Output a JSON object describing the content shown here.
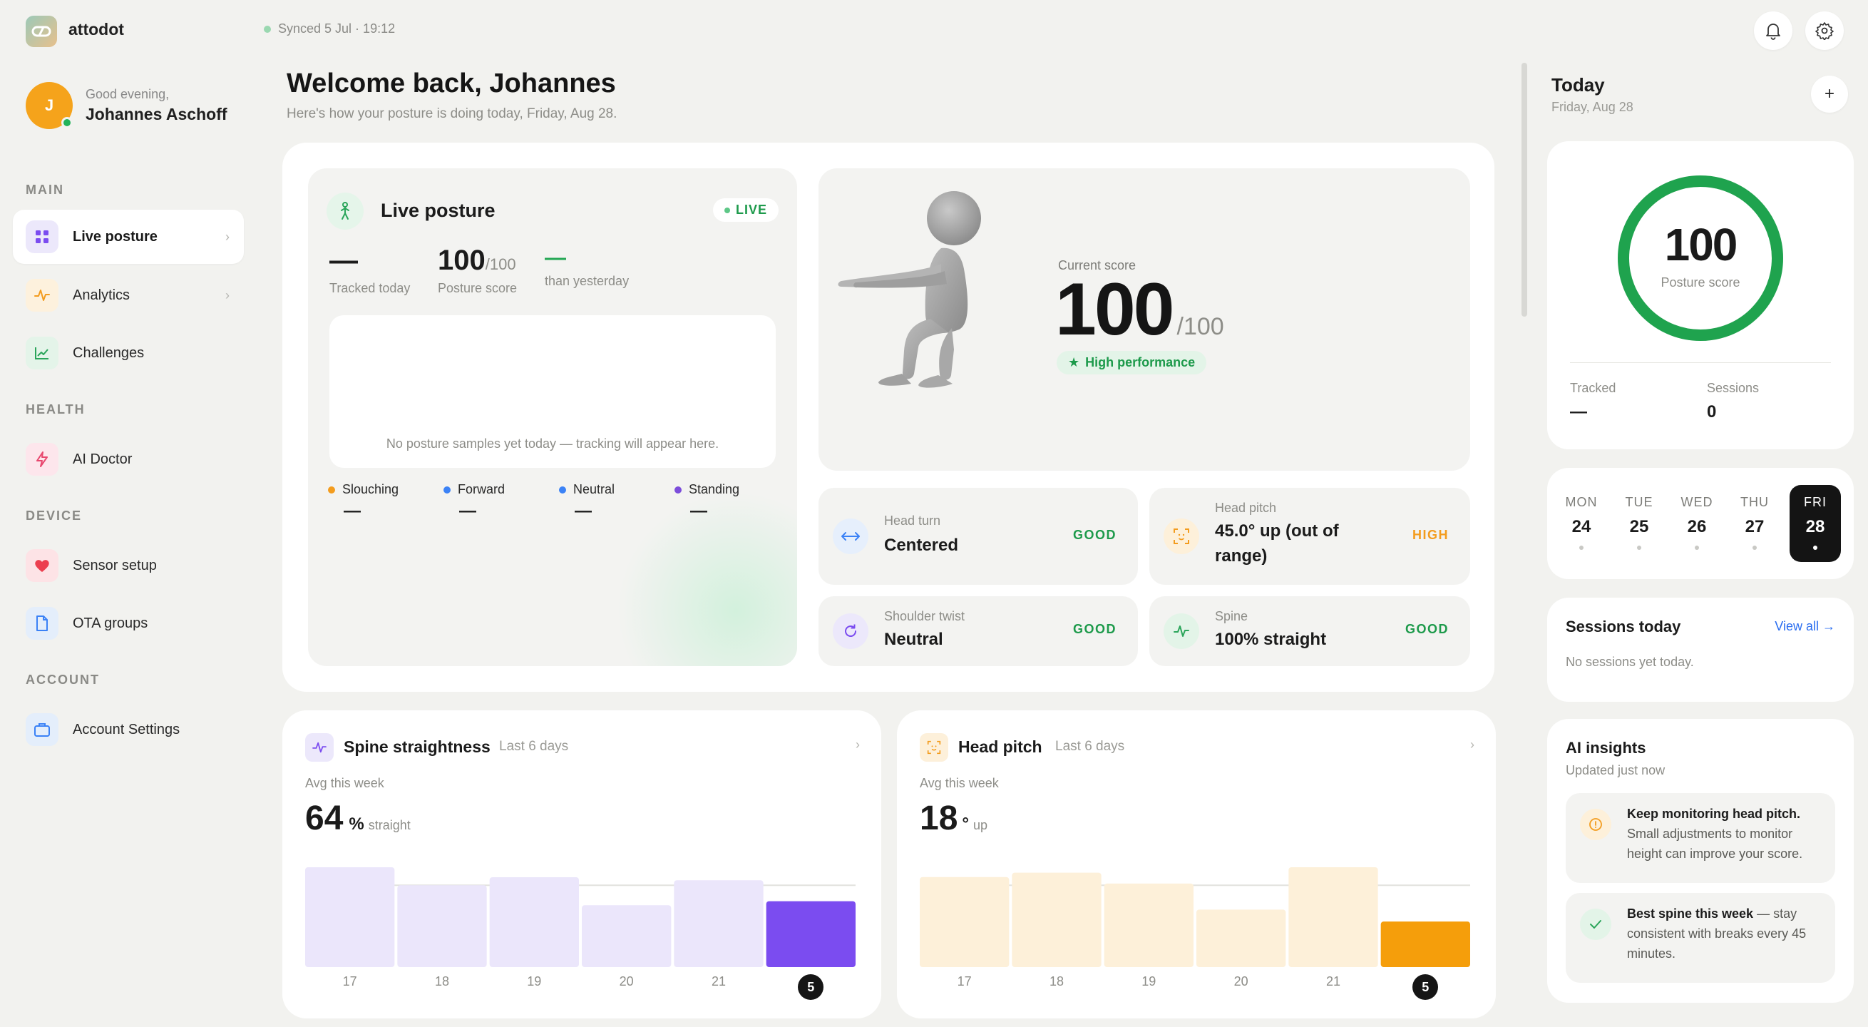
{
  "app": {
    "name": "attodot",
    "sync_status": "Synced 5 Jul · 19:12"
  },
  "user": {
    "greeting": "Good evening,",
    "name": "Johannes Aschoff",
    "initial": "J"
  },
  "sidebar": {
    "sections": [
      {
        "label": "MAIN",
        "items": [
          {
            "label": "Live posture",
            "icon": "grid-icon",
            "active": true,
            "chevron": "›"
          },
          {
            "label": "Analytics",
            "icon": "pulse-icon",
            "chevron": "›"
          },
          {
            "label": "Challenges",
            "icon": "trend-chart-icon"
          }
        ]
      },
      {
        "label": "HEALTH",
        "items": [
          {
            "label": "AI Doctor",
            "icon": "bolt-icon"
          }
        ]
      },
      {
        "label": "DEVICE",
        "items": [
          {
            "label": "Sensor setup",
            "icon": "heart-icon"
          },
          {
            "label": "OTA groups",
            "icon": "document-icon"
          }
        ]
      },
      {
        "label": "ACCOUNT",
        "items": [
          {
            "label": "Account Settings",
            "icon": "briefcase-icon"
          }
        ]
      }
    ]
  },
  "header": {
    "title": "Welcome back, Johannes",
    "subtitle": "Here's how your posture is doing today, Friday, Aug 28."
  },
  "live_posture": {
    "title": "Live posture",
    "live_label": "LIVE",
    "tracked_value": "—",
    "tracked_label": "Tracked today",
    "score_value": "100",
    "score_suffix": "/100",
    "score_label": "Posture score",
    "delta_value": "—",
    "delta_label": "than yesterday",
    "empty_message": "No posture samples yet today — tracking will appear here.",
    "legend": [
      {
        "label": "Slouching",
        "value": "—",
        "color": "#f39c1e"
      },
      {
        "label": "Forward",
        "value": "—",
        "color": "#3b82f6"
      },
      {
        "label": "Neutral",
        "value": "—",
        "color": "#3b82f6"
      },
      {
        "label": "Standing",
        "value": "—",
        "color": "#7c4ddb"
      }
    ]
  },
  "score_panel": {
    "label": "Current score",
    "value": "100",
    "suffix": "/100",
    "badge": "High performance"
  },
  "metrics": [
    {
      "label": "Head turn",
      "value": "Centered",
      "status": "GOOD",
      "status_color": "#1d9a4b",
      "icon": "arrows-horizontal-icon"
    },
    {
      "label": "Head pitch",
      "value": "45.0° up (out of range)",
      "status": "HIGH",
      "status_color": "#f39c1e",
      "icon": "face-scan-icon"
    },
    {
      "label": "Shoulder twist",
      "value": "Neutral",
      "status": "GOOD",
      "status_color": "#1d9a4b",
      "icon": "rotate-icon"
    },
    {
      "label": "Spine",
      "value": "100% straight",
      "status": "GOOD",
      "status_color": "#1d9a4b",
      "icon": "pulse-icon"
    }
  ],
  "spine_card": {
    "title": "Spine straightness",
    "period": "Last 6 days",
    "avg_label": "Avg this week",
    "avg_value": "64",
    "avg_unit": "%",
    "avg_suffix": "straight",
    "chart_data": {
      "type": "bar",
      "categories": [
        "17",
        "18",
        "19",
        "20",
        "21",
        "5"
      ],
      "values": [
        100,
        82,
        90,
        62,
        87,
        66
      ],
      "highlight_index": 5,
      "colors": {
        "bar": "#ebe6fb",
        "highlight": "#7b4cf0"
      }
    }
  },
  "pitch_card": {
    "title": "Head pitch",
    "period": "Last 6 days",
    "avg_label": "Avg this week",
    "avg_value": "18",
    "avg_unit": "°",
    "avg_suffix": "up",
    "chart_data": {
      "type": "bar",
      "categories": [
        "17",
        "18",
        "19",
        "20",
        "21",
        "5"
      ],
      "values": [
        83,
        87,
        77,
        53,
        92,
        42
      ],
      "highlight_index": 5,
      "colors": {
        "bar": "#fdf0d9",
        "highlight": "#f59e0b"
      }
    }
  },
  "today": {
    "title": "Today",
    "date": "Friday, Aug 28",
    "add_label": "+",
    "score_value": "100",
    "score_label": "Posture score",
    "score_fraction": 1.0,
    "tracked_label": "Tracked",
    "tracked_value": "—",
    "sessions_label": "Sessions",
    "sessions_value": "0"
  },
  "week": [
    {
      "name": "MON",
      "date": "24"
    },
    {
      "name": "TUE",
      "date": "25"
    },
    {
      "name": "WED",
      "date": "26"
    },
    {
      "name": "THU",
      "date": "27"
    },
    {
      "name": "FRI",
      "date": "28",
      "selected": true
    }
  ],
  "sessions": {
    "title": "Sessions today",
    "view_all": "View all →",
    "empty": "No sessions yet today."
  },
  "insights": {
    "title": "AI insights",
    "updated": "Updated just now",
    "items": [
      {
        "bold": "Keep monitoring head pitch.",
        "rest": "Small adjustments to monitor height can improve your score.",
        "icon": "info-icon"
      },
      {
        "bold": "Best spine this week",
        "rest": "— stay consistent with breaks every 45 minutes.",
        "icon": "check-icon"
      }
    ]
  }
}
